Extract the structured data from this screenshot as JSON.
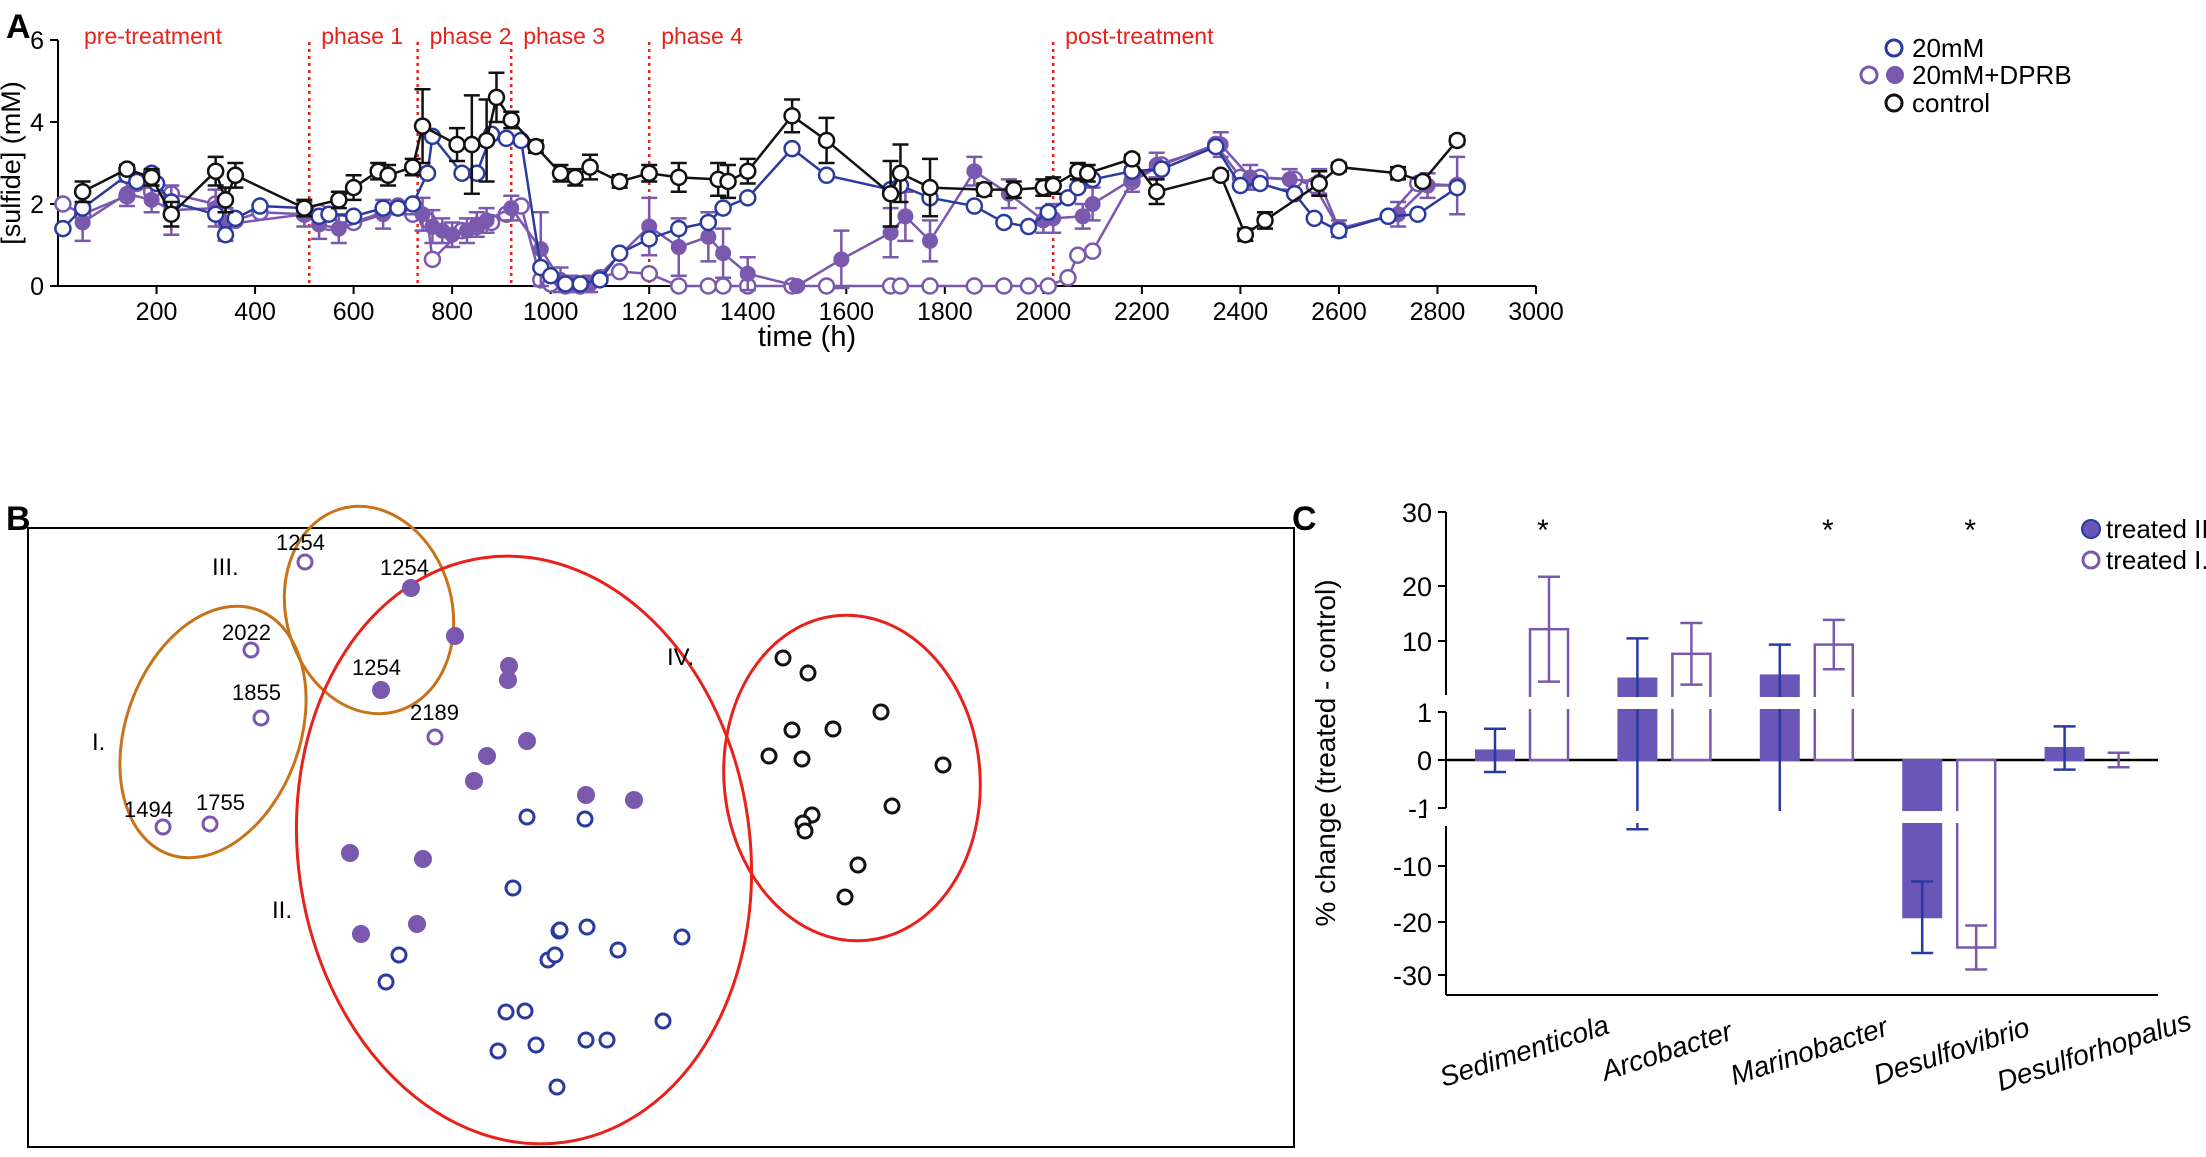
{
  "colors": {
    "blue": "#2b3a9f",
    "purple": "#7a58ad",
    "black": "#111111",
    "red": "#e8221b",
    "orange": "#c8731a",
    "bar_fill": "#6a55b8"
  },
  "panel_labels": {
    "a": "A",
    "b": "B",
    "c": "C"
  },
  "chart_data": [
    {
      "id": "A",
      "type": "line",
      "xlabel": "time (h)",
      "ylabel": "[sulfide] (mM)",
      "xlim": [
        0,
        3000
      ],
      "ylim": [
        0,
        6
      ],
      "xticks": [
        200,
        400,
        600,
        800,
        1000,
        1200,
        1400,
        1600,
        1800,
        2000,
        2200,
        2400,
        2600,
        2800,
        3000
      ],
      "yticks": [
        0,
        2,
        4,
        6
      ],
      "phases": [
        {
          "label": "pre-treatment",
          "start": 0
        },
        {
          "label": "phase 1",
          "start": 510
        },
        {
          "label": "phase 2",
          "start": 730
        },
        {
          "label": "phase 3",
          "start": 920
        },
        {
          "label": "phase 4",
          "start": 1200
        },
        {
          "label": "post-treatment",
          "start": 2020
        }
      ],
      "legend": [
        {
          "key": "20mM",
          "label": "20mM"
        },
        {
          "key": "20mM+DPRB",
          "label": "20mM+DPRB"
        },
        {
          "key": "control",
          "label": "control"
        }
      ],
      "series": [
        {
          "name": "control",
          "x": [
            50,
            140,
            190,
            230,
            320,
            340,
            360,
            500,
            570,
            600,
            650,
            670,
            720,
            740,
            810,
            840,
            870,
            890,
            920,
            970,
            1020,
            1050,
            1080,
            1140,
            1200,
            1260,
            1340,
            1360,
            1400,
            1490,
            1560,
            1690,
            1710,
            1770,
            1880,
            1940,
            2000,
            2020,
            2070,
            2090,
            2180,
            2230,
            2360,
            2410,
            2450,
            2560,
            2600,
            2720,
            2770,
            2840
          ],
          "y": [
            2.3,
            2.85,
            2.65,
            1.75,
            2.8,
            2.1,
            2.7,
            1.9,
            2.1,
            2.4,
            2.8,
            2.7,
            2.9,
            3.9,
            3.45,
            3.45,
            3.55,
            4.6,
            4.05,
            3.4,
            2.75,
            2.65,
            2.9,
            2.55,
            2.75,
            2.65,
            2.6,
            2.55,
            2.8,
            4.15,
            3.55,
            2.25,
            2.75,
            2.4,
            2.35,
            2.35,
            2.4,
            2.45,
            2.8,
            2.75,
            3.1,
            2.3,
            2.7,
            1.25,
            1.6,
            2.5,
            2.9,
            2.75,
            2.55,
            3.55
          ],
          "err": [
            0.25,
            0.1,
            0.2,
            0.3,
            0.35,
            0.3,
            0.3,
            0.2,
            0.2,
            0.3,
            0.2,
            0.25,
            0.2,
            0.9,
            0.4,
            1.2,
            1.0,
            0.6,
            0.2,
            0.15,
            0.2,
            0.2,
            0.3,
            0.15,
            0.2,
            0.35,
            0.4,
            0.4,
            0.3,
            0.4,
            0.55,
            0.8,
            0.7,
            0.7,
            0.15,
            0.2,
            0.2,
            0.2,
            0.2,
            0.2,
            0.1,
            0.3,
            0.1,
            0.15,
            0.2,
            0.3,
            0.1,
            0.15,
            0.1,
            0.1
          ]
        },
        {
          "name": "20mM",
          "x": [
            10,
            50,
            140,
            160,
            190,
            200,
            230,
            320,
            340,
            360,
            410,
            500,
            530,
            550,
            600,
            660,
            690,
            720,
            750,
            760,
            820,
            850,
            880,
            910,
            940,
            980,
            1000,
            1030,
            1060,
            1100,
            1140,
            1200,
            1260,
            1320,
            1350,
            1400,
            1490,
            1560,
            1690,
            1710,
            1770,
            1860,
            1920,
            1970,
            2010,
            2050,
            2070,
            2100,
            2180,
            2240,
            2350,
            2400,
            2440,
            2510,
            2550,
            2600,
            2700,
            2760,
            2840
          ],
          "y": [
            1.4,
            1.9,
            2.7,
            2.55,
            2.75,
            2.5,
            2.05,
            1.75,
            1.25,
            1.65,
            1.95,
            1.9,
            1.7,
            1.75,
            1.7,
            1.9,
            1.9,
            2.0,
            2.75,
            3.65,
            2.75,
            2.75,
            3.7,
            3.6,
            3.55,
            0.45,
            0.25,
            0.05,
            0.05,
            0.15,
            0.8,
            1.15,
            1.4,
            1.55,
            1.9,
            2.15,
            3.35,
            2.7,
            2.35,
            2.45,
            2.15,
            1.95,
            1.55,
            1.45,
            1.8,
            2.15,
            2.4,
            2.6,
            2.8,
            2.85,
            3.4,
            2.45,
            2.5,
            2.25,
            1.65,
            1.35,
            1.7,
            1.75,
            2.4
          ]
        },
        {
          "name": "20mM+DPRB",
          "x": [
            10,
            50,
            140,
            160,
            190,
            230,
            320,
            340,
            360,
            410,
            500,
            530,
            550,
            600,
            660,
            690,
            720,
            750,
            760,
            820,
            850,
            880,
            910,
            940,
            980,
            1000,
            1030,
            1060,
            1100,
            1140,
            1200,
            1260,
            1320,
            1350,
            1400,
            1490,
            1560,
            1690,
            1710,
            1770,
            1860,
            1920,
            1970,
            2010,
            2050,
            2070,
            2100,
            2180,
            2240,
            2350,
            2400,
            2440,
            2510,
            2550,
            2600,
            2700,
            2760,
            2840
          ],
          "y": [
            2.0,
            1.75,
            2.2,
            2.5,
            2.3,
            2.25,
            2.0,
            1.75,
            1.6,
            1.8,
            1.75,
            1.8,
            1.55,
            1.55,
            1.8,
            1.95,
            1.75,
            1.6,
            0.65,
            1.35,
            1.45,
            1.55,
            1.75,
            1.95,
            0.15,
            0.05,
            0.0,
            0.0,
            0.2,
            0.35,
            0.3,
            0.0,
            0.0,
            0.0,
            0.0,
            0.0,
            0.0,
            0.0,
            0.0,
            0.0,
            0.0,
            0.0,
            0.0,
            0.0,
            0.2,
            0.75,
            0.85,
            2.55,
            2.95,
            3.45,
            2.65,
            2.65,
            2.6,
            2.45,
            1.4,
            1.7,
            2.5,
            2.45
          ]
        },
        {
          "name": "20mM+DPRB filled",
          "x": [
            50,
            140,
            190,
            230,
            320,
            340,
            500,
            530,
            570,
            660,
            740,
            760,
            780,
            800,
            830,
            850,
            870,
            920,
            980,
            1020,
            1040,
            1060,
            1080,
            1200,
            1260,
            1320,
            1350,
            1400,
            1500,
            1590,
            1690,
            1720,
            1770,
            1860,
            1930,
            2000,
            2020,
            2080,
            2100,
            2180,
            2230,
            2360,
            2420,
            2500,
            2560,
            2600,
            2720,
            2780,
            2840
          ],
          "y": [
            1.55,
            2.25,
            2.1,
            1.85,
            1.9,
            1.5,
            1.75,
            1.5,
            1.4,
            1.75,
            1.75,
            1.45,
            1.35,
            1.25,
            1.35,
            1.5,
            1.6,
            1.9,
            0.9,
            0.15,
            0.05,
            0.0,
            0.05,
            1.45,
            0.95,
            1.2,
            0.8,
            0.3,
            0.0,
            0.65,
            1.3,
            1.7,
            1.1,
            2.8,
            2.25,
            1.6,
            1.65,
            1.7,
            2.0,
            2.6,
            2.95,
            3.45,
            2.65,
            2.6,
            2.55,
            1.4,
            1.75,
            2.45,
            2.45
          ],
          "err": [
            0.45,
            0.3,
            0.3,
            0.6,
            0.45,
            0.4,
            0.3,
            0.35,
            0.35,
            0.35,
            0.4,
            0.4,
            0.3,
            0.3,
            0.3,
            0.3,
            0.3,
            0.3,
            0.9,
            0.3,
            0.2,
            0.1,
            0.2,
            0.7,
            0.7,
            0.6,
            0.6,
            0.4,
            0.05,
            0.7,
            0.6,
            0.6,
            0.5,
            0.35,
            0.35,
            0.3,
            0.35,
            0.3,
            0.4,
            0.3,
            0.3,
            0.3,
            0.3,
            0.25,
            0.3,
            0.2,
            0.3,
            0.3,
            0.7
          ]
        }
      ]
    },
    {
      "id": "B",
      "type": "scatter",
      "title": "",
      "regions": [
        {
          "label": "I.",
          "color": "orange"
        },
        {
          "label": "II.",
          "color": "red"
        },
        {
          "label": "III.",
          "color": "orange"
        },
        {
          "label": "IV.",
          "color": "red"
        }
      ],
      "point_labels": [
        "1254",
        "1254",
        "2022",
        "1855",
        "1254",
        "2189",
        "1494",
        "1755"
      ]
    },
    {
      "id": "C",
      "type": "bar",
      "ylabel": "% change (treated - control)",
      "categories": [
        "Sedimenticola",
        "Arcobacter",
        "Marinobacter",
        "Desulfovibrio",
        "Desulforhopalus"
      ],
      "yticks_upper": [
        10,
        20,
        30
      ],
      "yticks_mid": [
        -1,
        0,
        1
      ],
      "yticks_lower": [
        -30,
        -20,
        -10
      ],
      "significance": [
        "*",
        "",
        "*",
        "*",
        ""
      ],
      "legend": [
        {
          "key": "treated II.",
          "label": "treated II."
        },
        {
          "key": "treated I.",
          "label": "treated I."
        }
      ],
      "series": [
        {
          "name": "treated II.",
          "values": [
            0.2,
            3.0,
            3.5,
            -19.5,
            0.25
          ],
          "err": [
            0.45,
            6.5,
            5.0,
            6.5,
            0.45
          ]
        },
        {
          "name": "treated I.",
          "values": [
            11.0,
            7.0,
            8.5,
            -25.0,
            0.0
          ],
          "err": [
            8.5,
            5.0,
            4.0,
            4.0,
            0.15
          ]
        }
      ]
    }
  ]
}
